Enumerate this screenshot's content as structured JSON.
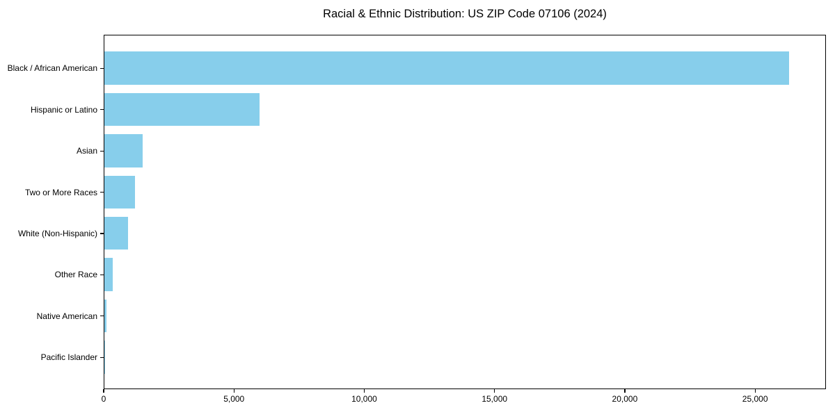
{
  "title": "Racial & Ethnic Distribution: US ZIP Code 07106 (2024)",
  "chart_data": {
    "type": "bar",
    "orientation": "horizontal",
    "title": "Racial & Ethnic Distribution: US ZIP Code 07106 (2024)",
    "xlabel": "",
    "ylabel": "",
    "categories": [
      "Black / African American",
      "Hispanic or Latino",
      "Asian",
      "Two or More Races",
      "White (Non-Hispanic)",
      "Other Race",
      "Native American",
      "Pacific Islander"
    ],
    "values": [
      26340,
      5975,
      1460,
      1185,
      900,
      320,
      90,
      12
    ],
    "xlim": [
      0,
      27720
    ],
    "x_ticks": [
      0,
      5000,
      10000,
      15000,
      20000,
      25000
    ],
    "x_tick_labels": [
      "0",
      "5,000",
      "10,000",
      "15,000",
      "20,000",
      "25,000"
    ],
    "bar_color": "#87CEEB",
    "axis_color": "#000000",
    "grid": false,
    "legend": "none",
    "background": "#ffffff"
  }
}
